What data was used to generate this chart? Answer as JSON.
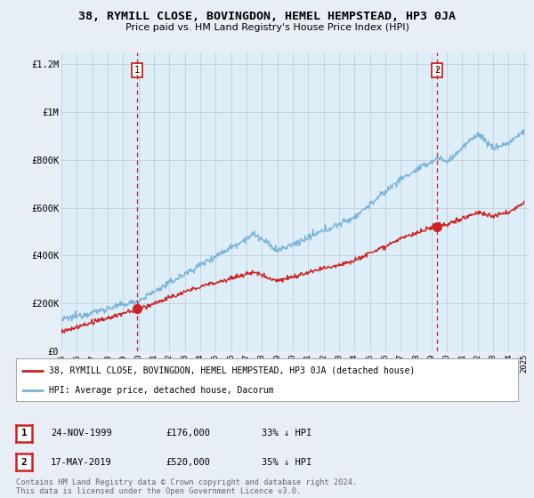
{
  "title": "38, RYMILL CLOSE, BOVINGDON, HEMEL HEMPSTEAD, HP3 0JA",
  "subtitle": "Price paid vs. HM Land Registry's House Price Index (HPI)",
  "ylabel_ticks": [
    "£0",
    "£200K",
    "£400K",
    "£600K",
    "£800K",
    "£1M",
    "£1.2M"
  ],
  "ylabel_values": [
    0,
    200000,
    400000,
    600000,
    800000,
    1000000,
    1200000
  ],
  "ylim": [
    0,
    1250000
  ],
  "hpi_color": "#7ab4d8",
  "hpi_fill": "#ddeef8",
  "price_color": "#cc2222",
  "dashed_color": "#cc2222",
  "marker1_date": 1999.9,
  "marker1_price": 176000,
  "marker1_label": "1",
  "marker2_date": 2019.37,
  "marker2_price": 520000,
  "marker2_label": "2",
  "legend_line1": "38, RYMILL CLOSE, BOVINGDON, HEMEL HEMPSTEAD, HP3 0JA (detached house)",
  "legend_line2": "HPI: Average price, detached house, Dacorum",
  "table_row1": [
    "1",
    "24-NOV-1999",
    "£176,000",
    "33% ↓ HPI"
  ],
  "table_row2": [
    "2",
    "17-MAY-2019",
    "£520,000",
    "35% ↓ HPI"
  ],
  "footnote1": "Contains HM Land Registry data © Crown copyright and database right 2024.",
  "footnote2": "This data is licensed under the Open Government Licence v3.0.",
  "bg_color": "#e8eef5",
  "plot_bg_color": "#ddeef8"
}
